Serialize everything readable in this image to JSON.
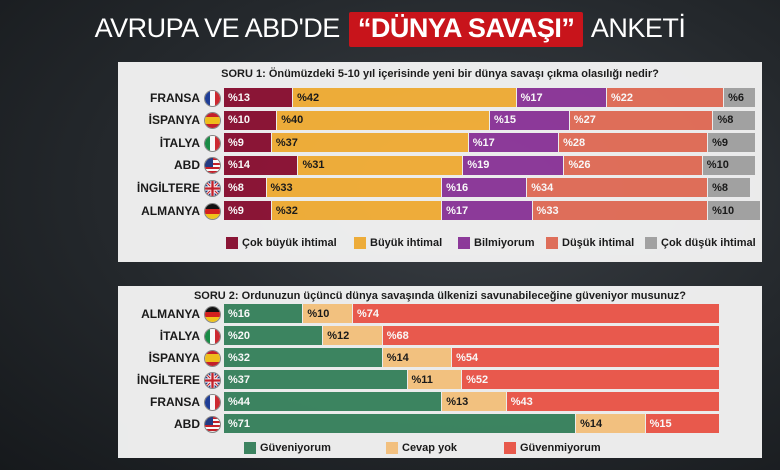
{
  "title": {
    "pre": "AVRUPA VE ABD'DE",
    "highlight": "“DÜNYA SAVAŞI”",
    "post": "ANKETİ"
  },
  "chart_data": [
    {
      "type": "bar",
      "stacked": true,
      "orientation": "horizontal",
      "title": "SORU 1: Önümüzdeki 5-10 yıl içerisinde  yeni bir dünya savaşı çıkma olasılığı nedir?",
      "categories": [
        "FRANSA",
        "İSPANYA",
        "İTALYA",
        "ABD",
        "İNGİLTERE",
        "ALMANYA"
      ],
      "flags": [
        "france-flag-icon",
        "spain-flag-icon",
        "italy-flag-icon",
        "usa-flag-icon",
        "uk-flag-icon",
        "germany-flag-icon"
      ],
      "series": [
        {
          "name": "Çok büyük ihtimal",
          "color": "#8e1537",
          "text_color": "#ffffff",
          "values": [
            13,
            10,
            9,
            14,
            8,
            9
          ]
        },
        {
          "name": "Büyük ihtimal",
          "color": "#f4b03a",
          "text_color": "#1a1a1a",
          "values": [
            42,
            40,
            37,
            31,
            33,
            32
          ]
        },
        {
          "name": "Bilmiyorum",
          "color": "#8f3a9c",
          "text_color": "#ffffff",
          "values": [
            17,
            15,
            17,
            19,
            16,
            17
          ]
        },
        {
          "name": "Düşük ihtimal",
          "color": "#e4705b",
          "text_color": "#ffffff",
          "values": [
            22,
            27,
            28,
            26,
            34,
            33
          ]
        },
        {
          "name": "Çok düşük ihtimal",
          "color": "#a5a5a5",
          "text_color": "#1a1a1a",
          "values": [
            6,
            8,
            9,
            10,
            8,
            10
          ]
        }
      ],
      "value_prefix": "%",
      "legend": "bottom"
    },
    {
      "type": "bar",
      "stacked": true,
      "orientation": "horizontal",
      "title": "SORU 2: Ordunuzun üçüncü dünya savaşında  ülkenizi savunabileceğine güveniyor musunuz?",
      "categories": [
        "ALMANYA",
        "İTALYA",
        "İSPANYA",
        "İNGİLTERE",
        "FRANSA",
        "ABD"
      ],
      "flags": [
        "germany-flag-icon",
        "italy-flag-icon",
        "spain-flag-icon",
        "uk-flag-icon",
        "france-flag-icon",
        "usa-flag-icon"
      ],
      "series": [
        {
          "name": "Güveniyorum",
          "color": "#3d8762",
          "text_color": "#ffffff",
          "values": [
            16,
            20,
            32,
            37,
            44,
            71
          ]
        },
        {
          "name": "Cevap yok",
          "color": "#f9c682",
          "text_color": "#1a1a1a",
          "values": [
            10,
            12,
            14,
            11,
            13,
            14
          ]
        },
        {
          "name": "Güvenmiyorum",
          "color": "#ef5b4e",
          "text_color": "#ffffff",
          "values": [
            74,
            68,
            54,
            52,
            43,
            15
          ]
        }
      ],
      "value_prefix": "%",
      "legend": "bottom"
    }
  ]
}
